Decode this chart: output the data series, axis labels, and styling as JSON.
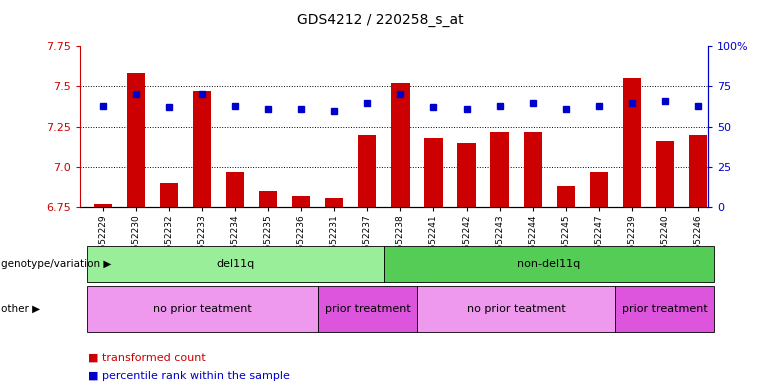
{
  "title": "GDS4212 / 220258_s_at",
  "samples": [
    "GSM652229",
    "GSM652230",
    "GSM652232",
    "GSM652233",
    "GSM652234",
    "GSM652235",
    "GSM652236",
    "GSM652231",
    "GSM652237",
    "GSM652238",
    "GSM652241",
    "GSM652242",
    "GSM652243",
    "GSM652244",
    "GSM652245",
    "GSM652247",
    "GSM652239",
    "GSM652240",
    "GSM652246"
  ],
  "red_values": [
    6.77,
    7.58,
    6.9,
    7.47,
    6.97,
    6.85,
    6.82,
    6.81,
    7.2,
    7.52,
    7.18,
    7.15,
    7.22,
    7.22,
    6.88,
    6.97,
    7.55,
    7.16,
    7.2
  ],
  "blue_values": [
    63,
    70,
    62,
    70,
    63,
    61,
    61,
    60,
    65,
    70,
    62,
    61,
    63,
    65,
    61,
    63,
    65,
    66,
    63
  ],
  "ymin": 6.75,
  "ymax": 7.75,
  "y2min": 0,
  "y2max": 100,
  "yticks": [
    6.75,
    7.0,
    7.25,
    7.5,
    7.75
  ],
  "y2ticks": [
    0,
    25,
    50,
    75,
    100
  ],
  "y2ticklabels": [
    "0",
    "25",
    "50",
    "75",
    "100%"
  ],
  "bar_color": "#cc0000",
  "dot_color": "#0000cc",
  "bar_base": 6.75,
  "genotype_groups": [
    {
      "label": "del11q",
      "start": 0,
      "end": 9,
      "color": "#99ee99"
    },
    {
      "label": "non-del11q",
      "start": 9,
      "end": 19,
      "color": "#55cc55"
    }
  ],
  "other_groups": [
    {
      "label": "no prior teatment",
      "start": 0,
      "end": 7,
      "color": "#ee99ee"
    },
    {
      "label": "prior treatment",
      "start": 7,
      "end": 10,
      "color": "#dd55dd"
    },
    {
      "label": "no prior teatment",
      "start": 10,
      "end": 16,
      "color": "#ee99ee"
    },
    {
      "label": "prior treatment",
      "start": 16,
      "end": 19,
      "color": "#dd55dd"
    }
  ],
  "legend_red_label": "transformed count",
  "legend_blue_label": "percentile rank within the sample",
  "row1_label": "genotype/variation",
  "row2_label": "other",
  "background_color": "#ffffff",
  "plot_bg_color": "#ffffff",
  "xlim": [
    -0.7,
    18.3
  ],
  "grid_lines": [
    7.0,
    7.25,
    7.5
  ]
}
